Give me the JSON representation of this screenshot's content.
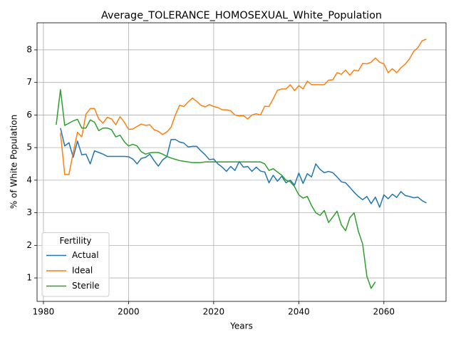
{
  "chart_data": {
    "type": "line",
    "title": "Average_TOLERANCE_HOMOSEXUAL_White_Population",
    "x_label": "Years",
    "y_label": "% of White Population",
    "legend_title": "Fertility",
    "legend_position": "lower left",
    "grid": true,
    "x": [
      1983,
      1984,
      1985,
      1986,
      1987,
      1988,
      1989,
      1990,
      1991,
      1992,
      1993,
      1994,
      1995,
      1996,
      1997,
      1998,
      1999,
      2000,
      2001,
      2002,
      2003,
      2004,
      2005,
      2006,
      2007,
      2008,
      2009,
      2010,
      2011,
      2012,
      2013,
      2014,
      2015,
      2016,
      2017,
      2018,
      2019,
      2020,
      2021,
      2022,
      2023,
      2024,
      2025,
      2026,
      2027,
      2028,
      2029,
      2030,
      2031,
      2032,
      2033,
      2034,
      2035,
      2036,
      2037,
      2038,
      2039,
      2040,
      2041,
      2042,
      2043,
      2044,
      2045,
      2046,
      2047,
      2048,
      2049,
      2050,
      2051,
      2052,
      2053,
      2054,
      2055,
      2056,
      2057,
      2058,
      2059,
      2060,
      2061,
      2062,
      2063,
      2064,
      2065,
      2066,
      2067,
      2068,
      2069,
      2070
    ],
    "series": [
      {
        "name": "Actual",
        "color": "#1f77b4",
        "values": [
          null,
          5.6,
          5.05,
          5.15,
          4.7,
          5.2,
          4.78,
          4.8,
          4.5,
          4.9,
          4.85,
          4.8,
          4.73,
          4.73,
          4.73,
          4.73,
          4.73,
          4.72,
          4.65,
          4.5,
          4.67,
          4.7,
          4.8,
          4.6,
          4.43,
          4.62,
          4.72,
          5.25,
          5.25,
          5.17,
          5.14,
          5.02,
          5.04,
          5.04,
          4.9,
          4.78,
          4.63,
          4.65,
          4.5,
          4.4,
          4.27,
          4.42,
          4.3,
          4.57,
          4.4,
          4.42,
          4.27,
          4.4,
          4.28,
          4.25,
          3.92,
          4.15,
          3.97,
          4.12,
          3.92,
          4.0,
          3.85,
          4.22,
          3.9,
          4.2,
          4.1,
          4.5,
          4.33,
          4.23,
          4.27,
          4.23,
          4.1,
          3.95,
          3.92,
          3.78,
          3.63,
          3.5,
          3.4,
          3.5,
          3.28,
          3.48,
          3.17,
          3.55,
          3.43,
          3.57,
          3.47,
          3.65,
          3.53,
          3.5,
          3.46,
          3.48,
          3.37,
          3.3
        ]
      },
      {
        "name": "Ideal",
        "color": "#ff7f0e",
        "values": [
          null,
          5.45,
          4.18,
          4.17,
          4.85,
          5.47,
          5.33,
          6.03,
          6.2,
          6.2,
          5.88,
          5.75,
          5.93,
          5.88,
          5.7,
          5.95,
          5.78,
          5.56,
          5.57,
          5.65,
          5.72,
          5.68,
          5.7,
          5.55,
          5.5,
          5.4,
          5.48,
          5.63,
          6.0,
          6.3,
          6.26,
          6.4,
          6.52,
          6.42,
          6.3,
          6.25,
          6.32,
          6.26,
          6.23,
          6.16,
          6.16,
          6.13,
          6.0,
          5.97,
          5.98,
          5.88,
          6.0,
          6.04,
          6.0,
          6.27,
          6.26,
          6.5,
          6.76,
          6.8,
          6.8,
          6.93,
          6.75,
          6.9,
          6.8,
          7.04,
          6.93,
          6.93,
          6.93,
          6.93,
          7.07,
          7.08,
          7.3,
          7.25,
          7.38,
          7.22,
          7.38,
          7.35,
          7.58,
          7.57,
          7.62,
          7.75,
          7.62,
          7.57,
          7.3,
          7.42,
          7.3,
          7.45,
          7.56,
          7.72,
          7.95,
          8.07,
          8.28,
          8.33
        ]
      },
      {
        "name": "Sterile",
        "color": "#2ca02c",
        "values": [
          5.7,
          6.78,
          5.68,
          5.75,
          5.82,
          5.87,
          5.6,
          5.6,
          5.85,
          5.78,
          5.52,
          5.6,
          5.6,
          5.55,
          5.33,
          5.38,
          5.18,
          5.05,
          5.1,
          5.05,
          4.87,
          4.8,
          4.84,
          4.85,
          4.85,
          4.8,
          4.73,
          4.68,
          4.64,
          4.6,
          4.58,
          4.56,
          4.54,
          4.54,
          4.54,
          4.56,
          4.56,
          4.56,
          4.56,
          4.56,
          4.56,
          4.56,
          4.56,
          4.56,
          4.56,
          4.56,
          4.56,
          4.56,
          4.56,
          4.5,
          4.3,
          4.35,
          4.25,
          4.15,
          4.0,
          3.95,
          3.8,
          3.55,
          3.45,
          3.5,
          3.22,
          3.0,
          2.92,
          3.07,
          2.7,
          2.87,
          3.05,
          2.63,
          2.45,
          2.85,
          3.0,
          2.43,
          2.05,
          1.05,
          0.68,
          0.88,
          null,
          null,
          null,
          null,
          null,
          null,
          null,
          null,
          null,
          null,
          null,
          null
        ]
      }
    ],
    "xlim": [
      1978.5,
      2074.6
    ],
    "ylim": [
      0.28,
      8.83
    ],
    "xticks": [
      1980,
      2000,
      2020,
      2040,
      2060
    ],
    "yticks": [
      1,
      2,
      3,
      4,
      5,
      6,
      7,
      8
    ]
  }
}
